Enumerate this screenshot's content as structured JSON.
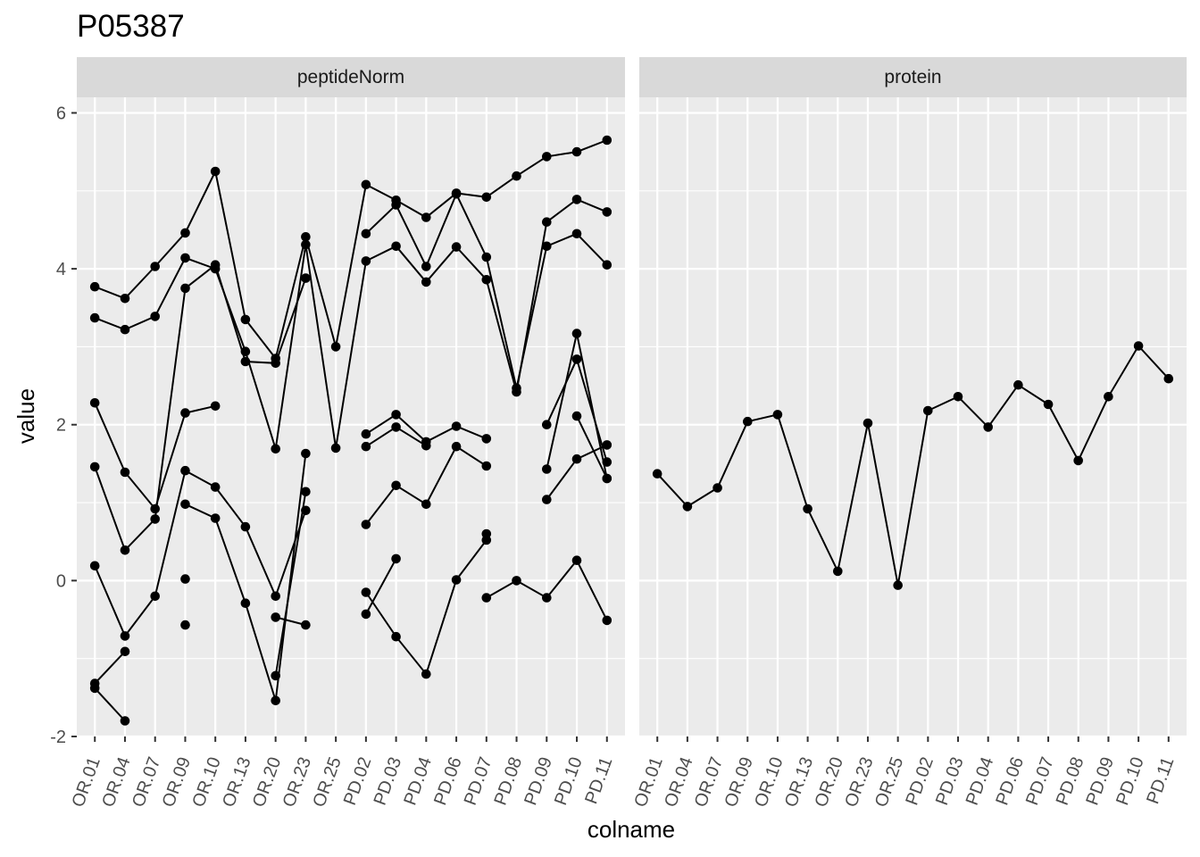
{
  "chart_data": {
    "type": "line",
    "title": "P05387",
    "xlabel": "colname",
    "ylabel": "value",
    "facet_labels": [
      "peptideNorm",
      "protein"
    ],
    "categories": [
      "OR.01",
      "OR.04",
      "OR.07",
      "OR.09",
      "OR.10",
      "OR.13",
      "OR.20",
      "OR.23",
      "OR.25",
      "PD.02",
      "PD.03",
      "PD.04",
      "PD.06",
      "PD.07",
      "PD.08",
      "PD.09",
      "PD.10",
      "PD.11"
    ],
    "ylim": [
      -2.0,
      6.2
    ],
    "yticks": [
      -2,
      0,
      2,
      4,
      6
    ],
    "grid": true,
    "panels": [
      {
        "facet": "peptideNorm",
        "series": [
          {
            "values": [
              3.77,
              3.62,
              4.03,
              4.46,
              5.25,
              3.35,
              2.85,
              4.41,
              3.0,
              5.08,
              4.88,
              4.66,
              4.97,
              4.92,
              5.19,
              5.44,
              5.5,
              5.65
            ]
          },
          {
            "values": [
              3.37,
              3.22,
              3.39,
              4.14,
              4.0,
              2.94,
              1.69,
              4.31,
              1.7,
              4.1,
              4.29,
              3.83,
              4.28,
              3.86,
              2.42,
              4.6,
              4.89,
              4.73
            ]
          },
          {
            "values": [
              2.28,
              1.39,
              0.92,
              2.15,
              2.24,
              null,
              null,
              null,
              null,
              4.45,
              4.82,
              4.03,
              4.96,
              4.15,
              2.47,
              4.29,
              4.45,
              4.05
            ]
          },
          {
            "values": [
              1.46,
              0.39,
              0.79,
              3.75,
              4.05,
              2.81,
              2.79,
              3.88,
              null,
              1.88,
              2.13,
              1.78,
              1.98,
              1.82,
              null,
              2.0,
              2.84,
              1.52
            ]
          },
          {
            "values": [
              0.19,
              -0.71,
              -0.2,
              1.41,
              1.2,
              0.69,
              -0.2,
              0.9,
              null,
              1.72,
              1.97,
              1.73,
              null,
              null,
              null,
              1.43,
              3.17,
              1.31
            ]
          },
          {
            "values": [
              -1.32,
              -0.91,
              null,
              0.98,
              0.8,
              -0.29,
              -1.54,
              1.63,
              null,
              0.72,
              1.22,
              0.98,
              1.72,
              1.47,
              null,
              1.04,
              1.56,
              1.74
            ]
          },
          {
            "values": [
              -1.38,
              -1.8,
              null,
              0.02,
              null,
              null,
              -1.22,
              1.14,
              null,
              -0.15,
              -0.72,
              -1.2,
              0.01,
              0.52,
              null,
              null,
              2.11,
              1.31
            ]
          },
          {
            "values": [
              null,
              null,
              null,
              -0.57,
              null,
              null,
              -0.47,
              -0.57,
              null,
              -0.43,
              0.28,
              null,
              null,
              0.6,
              null,
              null,
              null,
              null
            ]
          },
          {
            "values": [
              null,
              null,
              null,
              null,
              null,
              null,
              null,
              null,
              null,
              null,
              null,
              null,
              null,
              -0.22,
              0.0,
              -0.22,
              0.26,
              -0.51
            ]
          }
        ]
      },
      {
        "facet": "protein",
        "series": [
          {
            "values": [
              1.37,
              0.95,
              1.19,
              2.04,
              2.13,
              0.92,
              0.12,
              2.02,
              -0.06,
              2.18,
              2.36,
              1.97,
              2.51,
              2.26,
              1.54,
              2.36,
              3.01,
              2.59
            ]
          }
        ]
      }
    ]
  }
}
